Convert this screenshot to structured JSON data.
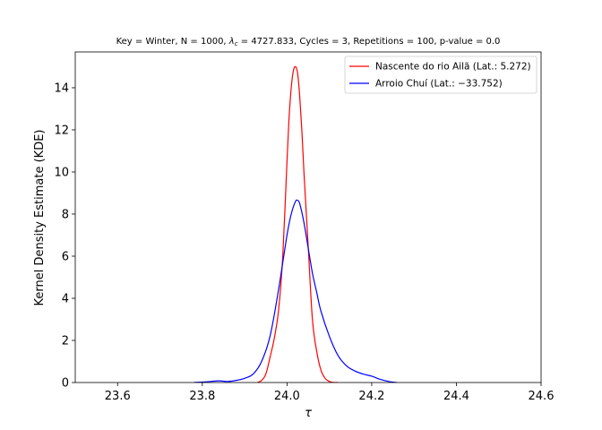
{
  "chart_data": {
    "type": "line",
    "title": "Key = Winter, N = 1000, λ_c = 4727.833, Cycles = 3, Repetitions = 100, p-value = 0.0",
    "title_parts": {
      "prefix": "Key = Winter, N = 1000, ",
      "lambda": "λ",
      "lambda_sub": "c",
      "suffix": " = 4727.833, Cycles = 3, Repetitions = 100, p-value = 0.0"
    },
    "xlabel": "τ",
    "ylabel": "Kernel Density Estimate (KDE)",
    "xlim": [
      23.5,
      24.6
    ],
    "ylim": [
      0,
      15.7
    ],
    "xticks": [
      23.6,
      23.8,
      24.0,
      24.2,
      24.4,
      24.6
    ],
    "xtick_labels": [
      "23.6",
      "23.8",
      "24.0",
      "24.2",
      "24.4",
      "24.6"
    ],
    "yticks": [
      0,
      2,
      4,
      6,
      8,
      10,
      12,
      14
    ],
    "ytick_labels": [
      "0",
      "2",
      "4",
      "6",
      "8",
      "10",
      "12",
      "14"
    ],
    "grid": false,
    "legend_position": "top-right",
    "series": [
      {
        "name": "Nascente do rio Ailã (Lat.: 5.272)",
        "color": "#ff0000",
        "x": [
          23.93,
          23.94,
          23.95,
          23.96,
          23.97,
          23.98,
          23.99,
          24.0,
          24.005,
          24.01,
          24.015,
          24.02,
          24.025,
          24.03,
          24.035,
          24.04,
          24.05,
          24.06,
          24.07,
          24.08,
          24.09,
          24.1,
          24.11,
          24.12
        ],
        "y": [
          0.0,
          0.1,
          0.4,
          1.2,
          2.1,
          3.4,
          6.0,
          10.5,
          12.6,
          14.0,
          14.8,
          15.0,
          14.7,
          13.6,
          12.0,
          10.0,
          6.5,
          3.0,
          1.5,
          0.6,
          0.2,
          0.05,
          0.0,
          0.0
        ]
      },
      {
        "name": "Arroio Chuí (Lat.: −33.752)",
        "color": "#0000ff",
        "x": [
          23.78,
          23.8,
          23.82,
          23.84,
          23.86,
          23.88,
          23.9,
          23.92,
          23.94,
          23.96,
          23.98,
          24.0,
          24.01,
          24.02,
          24.025,
          24.03,
          24.04,
          24.05,
          24.06,
          24.07,
          24.08,
          24.1,
          24.12,
          24.14,
          24.16,
          24.18,
          24.2,
          24.22,
          24.24,
          24.26
        ],
        "y": [
          0.0,
          0.02,
          0.05,
          0.08,
          0.05,
          0.1,
          0.2,
          0.4,
          1.0,
          2.2,
          4.4,
          7.0,
          8.0,
          8.6,
          8.65,
          8.5,
          7.6,
          6.4,
          5.2,
          4.3,
          3.4,
          2.2,
          1.3,
          0.8,
          0.55,
          0.4,
          0.3,
          0.15,
          0.05,
          0.0
        ]
      }
    ]
  }
}
